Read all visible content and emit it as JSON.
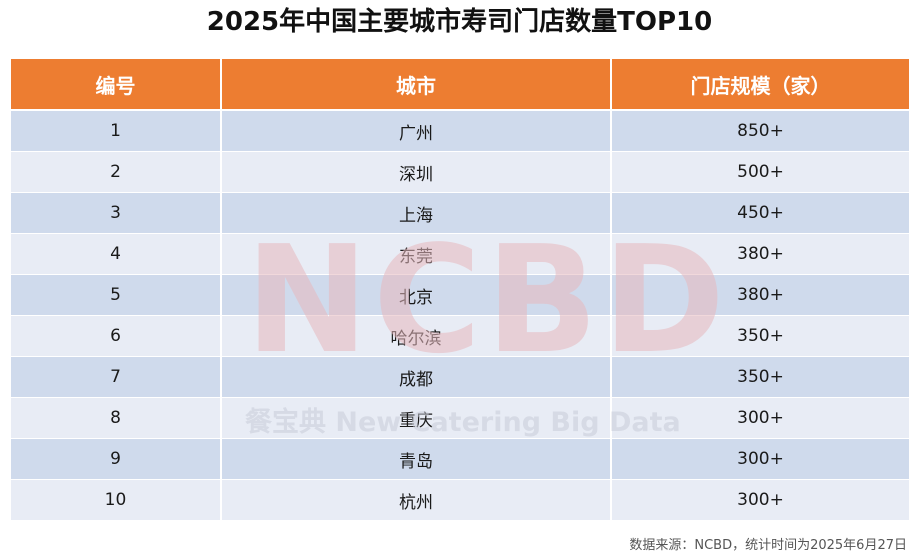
{
  "title": "2025年中国主要城市寿司门店数量TOP10",
  "table": {
    "headers": [
      "编号",
      "城市",
      "门店规模（家）"
    ],
    "rows": [
      {
        "rank": "1",
        "city": "广州",
        "stores": "850+"
      },
      {
        "rank": "2",
        "city": "深圳",
        "stores": "500+"
      },
      {
        "rank": "3",
        "city": "上海",
        "stores": "450+"
      },
      {
        "rank": "4",
        "city": "东莞",
        "stores": "380+"
      },
      {
        "rank": "5",
        "city": "北京",
        "stores": "380+"
      },
      {
        "rank": "6",
        "city": "哈尔滨",
        "stores": "350+"
      },
      {
        "rank": "7",
        "city": "成都",
        "stores": "350+"
      },
      {
        "rank": "8",
        "city": "重庆",
        "stores": "300+"
      },
      {
        "rank": "9",
        "city": "青岛",
        "stores": "300+"
      },
      {
        "rank": "10",
        "city": "杭州",
        "stores": "300+"
      }
    ]
  },
  "watermark": {
    "logo": "NCBD",
    "text": "餐宝典 New Catering Big Data"
  },
  "source": "数据来源：NCBD，统计时间为2025年6月27日",
  "colors": {
    "header_bg": "#ED7D31",
    "row_dark": "#CFDAEC",
    "row_light": "#E8ECF5",
    "watermark_logo": "#E7B9BE"
  }
}
